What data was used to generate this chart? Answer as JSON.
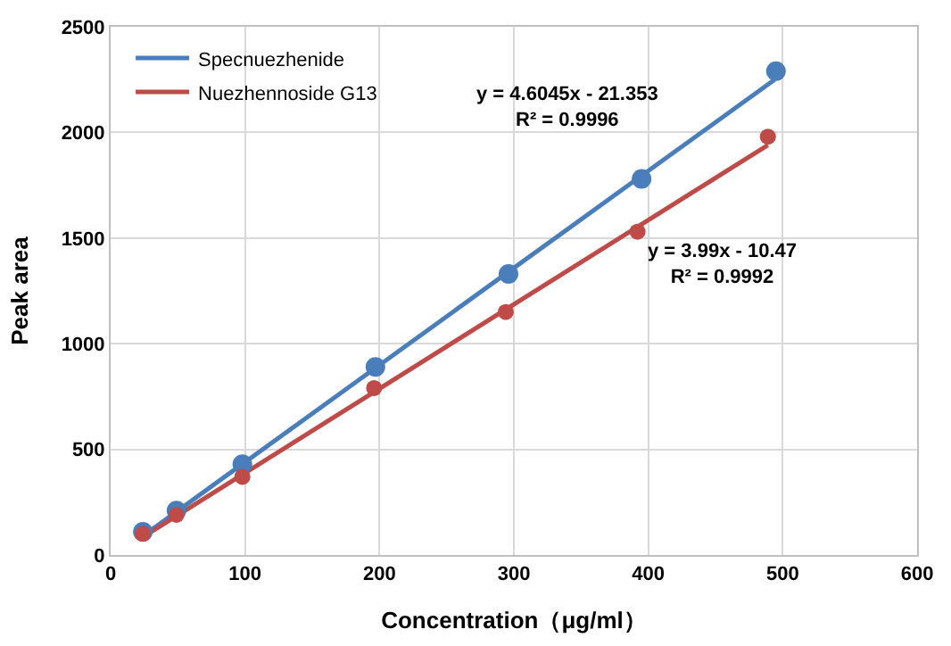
{
  "chart_data": {
    "type": "scatter",
    "xlabel": "Concentration（μg/ml）",
    "ylabel": "Peak area",
    "xlim": [
      0,
      600
    ],
    "xticks": [
      0,
      100,
      200,
      300,
      400,
      500,
      600
    ],
    "ylim": [
      0,
      2500
    ],
    "yticks": [
      0,
      500,
      1000,
      1500,
      2000,
      2500
    ],
    "grid": true,
    "legend": "top left",
    "marker": "circle",
    "series": [
      {
        "type": "line",
        "marker": "none",
        "name": "Specnuezhenide",
        "color": "#4a7ebb",
        "x": [
          24,
          494
        ],
        "values": [
          90,
          2250
        ]
      },
      {
        "type": "line",
        "marker": "none",
        "name": "Nuezhennoside G13",
        "color": "#be4b48",
        "x": [
          24,
          489
        ],
        "values": [
          85,
          1940
        ]
      },
      {
        "color": "#4a7ebb",
        "x": [
          24,
          49,
          98,
          197,
          296,
          395,
          495
        ],
        "values": [
          110,
          210,
          430,
          890,
          1330,
          1780,
          2290
        ]
      },
      {
        "color": "#be4b48",
        "x": [
          24,
          49,
          98,
          196,
          294,
          392,
          489
        ],
        "values": [
          100,
          190,
          370,
          790,
          1150,
          1530,
          1980
        ]
      }
    ],
    "annotations": [
      "y = 4.6045x - 21.353\nR² = 0.9996",
      "y = 3.99x - 10.47\nR² = 0.9992"
    ]
  }
}
